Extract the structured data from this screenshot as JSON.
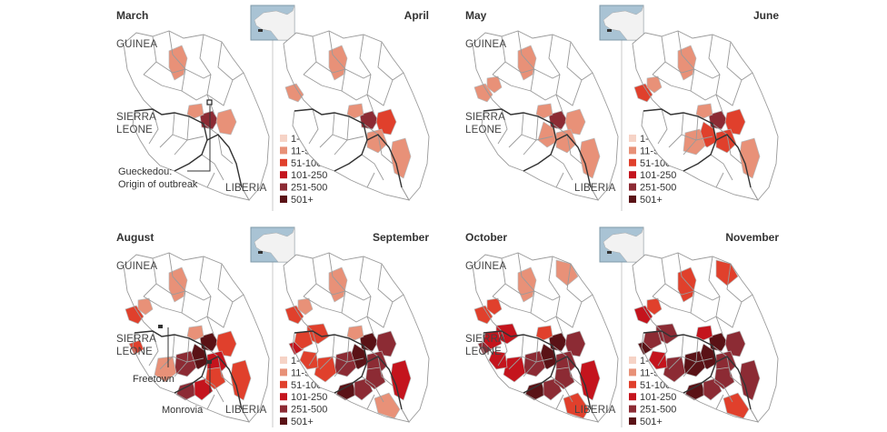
{
  "colors": {
    "scale": [
      "#f6d3c6",
      "#e89178",
      "#e0402c",
      "#c4141d",
      "#8c2b34",
      "#5a1216"
    ],
    "empty": "#ffffff",
    "divider": "#c8c8c8",
    "locator_bg": "#a9c3d4",
    "locator_land": "#f2f2f2"
  },
  "legend": {
    "items": [
      "1-10",
      "11-50",
      "51-100",
      "101-250",
      "251-500",
      "501+"
    ]
  },
  "labels": {
    "guinea": "GUINEA",
    "sierra_leone_1": "SIERRA",
    "sierra_leone_2": "LEONE",
    "liberia": "LIBERIA",
    "gueckedou_1": "Gueckedou:",
    "gueckedou_2": "Origin of outbreak",
    "freetown": "Freetown",
    "monrovia": "Monrovia"
  },
  "months": [
    {
      "name": "March",
      "levels": {
        "gueckedou": 4,
        "macenta": 1,
        "kissi": 1,
        "conakry_east": 1
      }
    },
    {
      "name": "April",
      "levels": {
        "gueckedou": 4,
        "macenta": 2,
        "kissi": 1,
        "conakry_east": 1,
        "lofa": 1,
        "nimba": 1,
        "boffa": 1,
        "coast": 1
      }
    },
    {
      "name": "May",
      "levels": {
        "gueckedou": 4,
        "macenta": 1,
        "kissi": 1,
        "conakry_east": 1,
        "coast": 1,
        "dubreka": 1,
        "lofa": 1,
        "nimba": 1,
        "kailahun": 1
      }
    },
    {
      "name": "June",
      "levels": {
        "gueckedou": 4,
        "macenta": 2,
        "kissi": 1,
        "conakry_east": 1,
        "coast": 2,
        "dubreka": 1,
        "lofa": 2,
        "nimba": 1,
        "kailahun": 2,
        "kenema": 1
      }
    },
    {
      "name": "August",
      "levels": {
        "gueckedou": 5,
        "macenta": 2,
        "kissi": 1,
        "conakry_east": 1,
        "coast": 2,
        "dubreka": 1,
        "lofa": 3,
        "nimba": 2,
        "kailahun": 5,
        "kenema": 4,
        "bo": 1,
        "montserrado": 4,
        "margibi": 3,
        "bong": 2,
        "western": 2
      }
    },
    {
      "name": "September",
      "levels": {
        "gueckedou": 5,
        "macenta": 4,
        "kissi": 1,
        "conakry_east": 1,
        "coast": 2,
        "dubreka": 1,
        "lofa": 4,
        "nimba": 3,
        "kailahun": 5,
        "kenema": 4,
        "bo": 2,
        "montserrado": 5,
        "margibi": 4,
        "bong": 4,
        "western": 3,
        "bombali": 2,
        "port_loko": 2,
        "moyamba": 2,
        "south_liberia": 1
      }
    },
    {
      "name": "October",
      "levels": {
        "gueckedou": 5,
        "macenta": 4,
        "kissi": 2,
        "conakry_east": 1,
        "coast": 2,
        "dubreka": 2,
        "lofa": 4,
        "nimba": 3,
        "kailahun": 5,
        "kenema": 4,
        "bo": 3,
        "montserrado": 5,
        "margibi": 4,
        "bong": 4,
        "western": 4,
        "bombali": 3,
        "port_loko": 3,
        "moyamba": 3,
        "south_liberia": 2,
        "north_guinea": 1
      }
    },
    {
      "name": "November",
      "levels": {
        "gueckedou": 5,
        "macenta": 4,
        "kissi": 3,
        "conakry_east": 2,
        "coast": 3,
        "dubreka": 2,
        "lofa": 4,
        "nimba": 4,
        "kailahun": 5,
        "kenema": 5,
        "bo": 4,
        "montserrado": 5,
        "margibi": 4,
        "bong": 4,
        "western": 5,
        "bombali": 4,
        "port_loko": 4,
        "moyamba": 3,
        "south_liberia": 2,
        "north_guinea": 2
      }
    }
  ]
}
